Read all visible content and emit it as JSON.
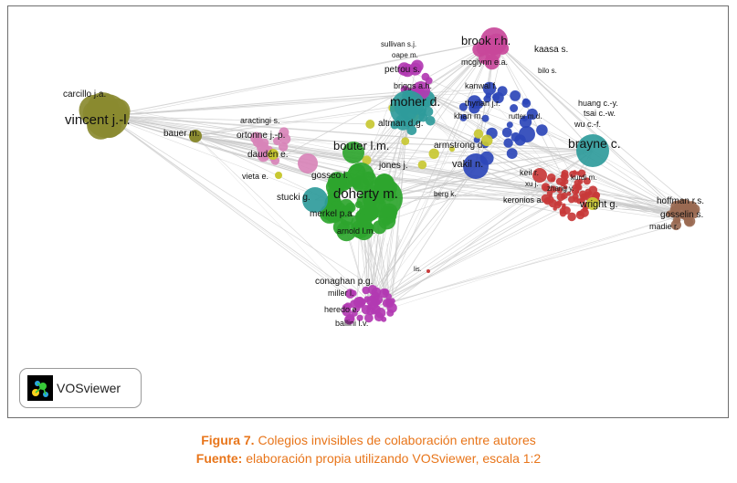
{
  "logo": {
    "name": "VOSviewer",
    "icon": "vosviewer-logo-icon"
  },
  "caption": {
    "figure_label": "Figura 7.",
    "figure_text": "Colegios invisibles de colaboración entre autores",
    "source_label": "Fuente:",
    "source_text": "elaboración propia utilizando VOSviewer, escala 1:2"
  },
  "colors": {
    "olive": "#8a8a30",
    "teal": "#2f9b9b",
    "green": "#2ea52e",
    "purple": "#b23ab2",
    "magenta": "#c8489a",
    "blue": "#2c47b8",
    "red": "#c83a3a",
    "brown": "#9a6a52",
    "yellow": "#c8c832",
    "pink": "#d884b8",
    "edge": "#c9c9c9"
  },
  "clusters": [
    {
      "id": "olive",
      "color": "olive",
      "labels": [
        "carcillo j.a.",
        "vincent j.-l.",
        "bauer m."
      ]
    },
    {
      "id": "pink",
      "color": "pink",
      "labels": [
        "aractingi s.",
        "ortonne j.-p.",
        "daudén e.",
        "vieta e."
      ]
    },
    {
      "id": "teal",
      "color": "teal",
      "labels": [
        "moher d.",
        "altman d.g.",
        "brayne c.",
        "huang c.-y.",
        "tsai c.-w.",
        "wu c.-f."
      ]
    },
    {
      "id": "green",
      "color": "green",
      "labels": [
        "bouter l.m.",
        "gosseo l.",
        "jones j.",
        "stucki g.",
        "doherty m.",
        "merkel p.a.",
        "arnold l.m."
      ]
    },
    {
      "id": "purple",
      "color": "purple",
      "labels": [
        "sullivan s.j.",
        "oape m.",
        "petrou s.",
        "briggs a.h.",
        "conaghan p.g.",
        "miller l.",
        "heredo e.",
        "ballini l.v."
      ]
    },
    {
      "id": "magenta",
      "color": "magenta",
      "labels": [
        "brook r.h.",
        "mcglynn e.a."
      ]
    },
    {
      "id": "blue",
      "color": "blue",
      "labels": [
        "kaasa s.",
        "bilo s.",
        "kanwal f.",
        "thyrian j.r.",
        "khan m.",
        "rutter m.d.",
        "armstrong d.",
        "vakil n."
      ]
    },
    {
      "id": "red",
      "color": "red",
      "labels": [
        "keil r.",
        "kurdi m.",
        "xu j.",
        "zhang y.",
        "keronios a.",
        "wright g.",
        "lis."
      ]
    },
    {
      "id": "gray",
      "color": "edge",
      "labels": [
        "berg k."
      ]
    },
    {
      "id": "brown",
      "color": "brown",
      "labels": [
        "hoffman r.s.",
        "gosselin s.",
        "madie r."
      ]
    }
  ]
}
